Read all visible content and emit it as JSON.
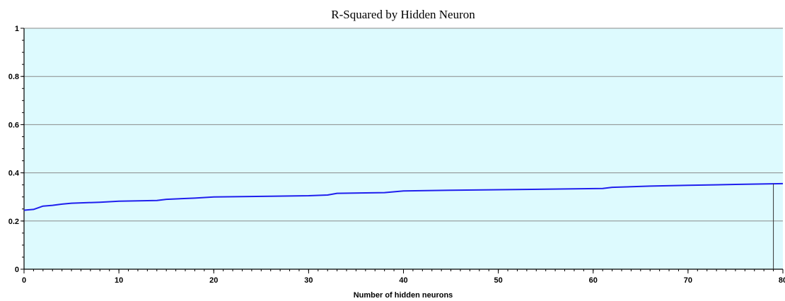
{
  "chart_data": {
    "type": "line",
    "title": "R-Squared by Hidden Neuron",
    "xlabel": "Number of hidden neurons",
    "ylabel": "",
    "xlim": [
      0,
      80
    ],
    "ylim": [
      0,
      1
    ],
    "x_ticks": [
      "0",
      "10",
      "20",
      "30",
      "40",
      "50",
      "60",
      "70",
      "80"
    ],
    "y_ticks": [
      "0",
      "0.2",
      "0.4",
      "0.6",
      "0.8",
      "1"
    ],
    "grid": "horizontal",
    "plot_background": "#ddfafe",
    "series": [
      {
        "color": "#1f1fee",
        "x": [
          0,
          1,
          2,
          3,
          4,
          5,
          8,
          10,
          14,
          15,
          18,
          20,
          26,
          30,
          32,
          33,
          38,
          40,
          45,
          55,
          61,
          62,
          66,
          70,
          75,
          80
        ],
        "values": [
          0.245,
          0.248,
          0.262,
          0.265,
          0.27,
          0.274,
          0.278,
          0.282,
          0.285,
          0.29,
          0.295,
          0.3,
          0.303,
          0.305,
          0.308,
          0.315,
          0.318,
          0.325,
          0.328,
          0.332,
          0.335,
          0.34,
          0.345,
          0.348,
          0.352,
          0.355
        ]
      }
    ],
    "marker_line": {
      "x": 79,
      "color": "#333333"
    }
  }
}
